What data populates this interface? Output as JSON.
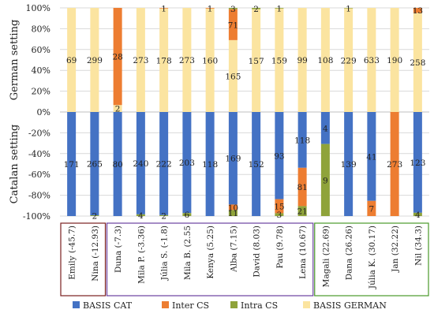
{
  "chart_data": {
    "type": "bar",
    "stacked": "diverging-100",
    "categories": [
      "Emily (-45.7)",
      "Nina (-12.93)",
      "Duna (-7.3)",
      "Mila P. (-3.36)",
      "Júlia S. (-1.8)",
      "Mila B. (2.55",
      "Kenya (5.25)",
      "Alba (7.15)",
      "David (8.03)",
      "Pau (9.78)",
      "Lena (10.67)",
      "Magali (22.69)",
      "Dana (26.26)",
      "Júlia K. (30.17)",
      "Jan (32.22)",
      "Nil (34.3)"
    ],
    "group_boxes": [
      {
        "from": 0,
        "to": 1,
        "color": "#7a1f1f"
      },
      {
        "from": 2,
        "to": 10,
        "color": "#6b3fa0"
      },
      {
        "from": 11,
        "to": 15,
        "color": "#4a9a2a"
      }
    ],
    "y_axis": {
      "ylim": [
        -100,
        100
      ],
      "ticks": [
        "100%",
        "80%",
        "60%",
        "40%",
        "20%",
        "0%",
        "-20%",
        "-40%",
        "-60%",
        "-80%",
        "-100%"
      ]
    },
    "ylabel_german": "German setting",
    "ylabel_catalan": "Catalan setting",
    "legend": [
      "BASIS CAT",
      "Inter CS",
      "Intra CS",
      "BASIS GERMAN"
    ],
    "colors": {
      "basis_cat": "#4472c4",
      "inter_cs": "#ed7d31",
      "intra_cs": "#8fa33a",
      "basis_german": "#fbe4a0"
    },
    "german": [
      {
        "basis_german": 69,
        "inter_cs": 0,
        "intra_cs": 0
      },
      {
        "basis_german": 299,
        "inter_cs": 0,
        "intra_cs": 0
      },
      {
        "basis_german": 2,
        "inter_cs": 28,
        "intra_cs": 0
      },
      {
        "basis_german": 273,
        "inter_cs": 0,
        "intra_cs": 0
      },
      {
        "basis_german": 178,
        "inter_cs": 1,
        "intra_cs": 0
      },
      {
        "basis_german": 273,
        "inter_cs": 0,
        "intra_cs": 0
      },
      {
        "basis_german": 160,
        "inter_cs": 1,
        "intra_cs": 0
      },
      {
        "basis_german": 165,
        "inter_cs": 71,
        "intra_cs": 3
      },
      {
        "basis_german": 157,
        "inter_cs": 0,
        "intra_cs": 2
      },
      {
        "basis_german": 159,
        "inter_cs": 0,
        "intra_cs": 1
      },
      {
        "basis_german": 99,
        "inter_cs": 0,
        "intra_cs": 0
      },
      {
        "basis_german": 108,
        "inter_cs": 0,
        "intra_cs": 0
      },
      {
        "basis_german": 229,
        "inter_cs": 0,
        "intra_cs": 1
      },
      {
        "basis_german": 633,
        "inter_cs": 0,
        "intra_cs": 0
      },
      {
        "basis_german": 190,
        "inter_cs": 0,
        "intra_cs": 0
      },
      {
        "basis_german": 258,
        "inter_cs": 13,
        "intra_cs": 0
      }
    ],
    "catalan": [
      {
        "basis_cat": 171,
        "inter_cs": 0,
        "intra_cs": 0
      },
      {
        "basis_cat": 265,
        "inter_cs": 0,
        "intra_cs": 2
      },
      {
        "basis_cat": 80,
        "inter_cs": 0,
        "intra_cs": 0
      },
      {
        "basis_cat": 240,
        "inter_cs": 0,
        "intra_cs": 4
      },
      {
        "basis_cat": 222,
        "inter_cs": 0,
        "intra_cs": 2
      },
      {
        "basis_cat": 203,
        "inter_cs": 0,
        "intra_cs": 6
      },
      {
        "basis_cat": 118,
        "inter_cs": 0,
        "intra_cs": 0
      },
      {
        "basis_cat": 169,
        "inter_cs": 10,
        "intra_cs": 11
      },
      {
        "basis_cat": 152,
        "inter_cs": 0,
        "intra_cs": 0
      },
      {
        "basis_cat": 93,
        "inter_cs": 15,
        "intra_cs": 3
      },
      {
        "basis_cat": 118,
        "inter_cs": 81,
        "intra_cs": 21
      },
      {
        "basis_cat": 4,
        "inter_cs": 0,
        "intra_cs": 9
      },
      {
        "basis_cat": 139,
        "inter_cs": 0,
        "intra_cs": 0
      },
      {
        "basis_cat": 41,
        "inter_cs": 7,
        "intra_cs": 0
      },
      {
        "basis_cat": 0,
        "inter_cs": 273,
        "intra_cs": 0
      },
      {
        "basis_cat": 123,
        "inter_cs": 0,
        "intra_cs": 4
      }
    ]
  }
}
